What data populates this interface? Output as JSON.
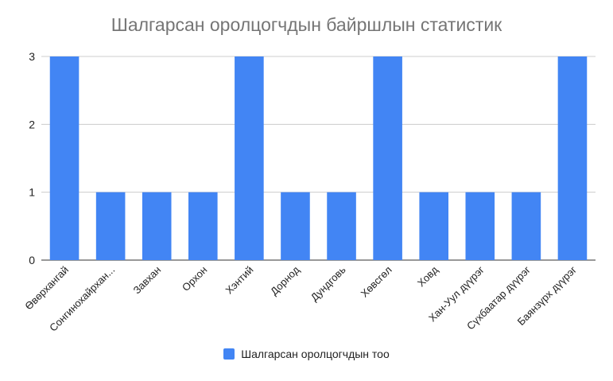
{
  "chart_data": {
    "type": "bar",
    "title": "Шалгарсан оролцогчдын байршлын статистик",
    "xlabel": "",
    "ylabel": "",
    "categories": [
      "Өвөрхангай",
      "Сонгинохайрхан...",
      "Завхан",
      "Орхон",
      "Хэнтий",
      "Дорнод",
      "Дундговь",
      "Хөвсгөл",
      "Ховд",
      "Хан-Уул дүүрэг",
      "Сүхбаатар дүүрэг",
      "Баянзүрх дүүрэг"
    ],
    "series": [
      {
        "name": "Шалгарсан оролцогчдын тоо",
        "values": [
          3,
          1,
          1,
          1,
          3,
          1,
          1,
          3,
          1,
          1,
          1,
          3
        ]
      }
    ],
    "ylim": [
      0,
      3
    ],
    "yticks": [
      0,
      1,
      2,
      3
    ],
    "grid": true,
    "legend_position": "bottom",
    "colors": {
      "bar": "#4285f4",
      "grid": "#cccccc",
      "axis": "#333333",
      "title": "#757575"
    }
  }
}
